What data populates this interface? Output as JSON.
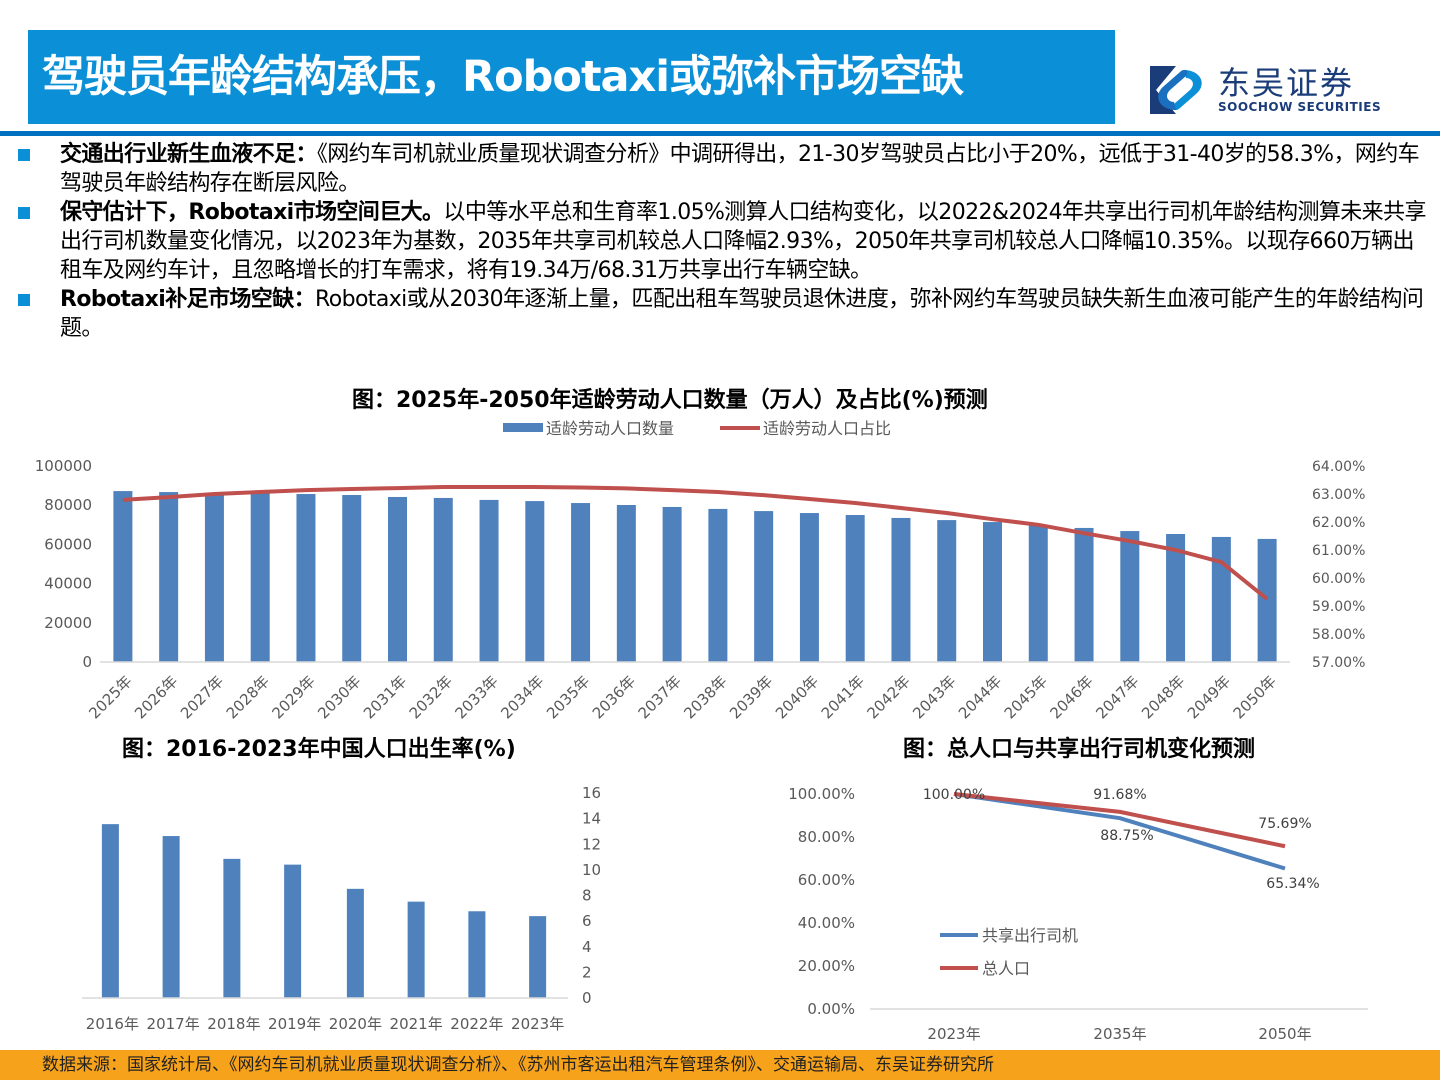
{
  "header": {
    "title": "驾驶员年龄结构承压，Robotaxi或弥补市场空缺",
    "logo_cn": "东吴证券",
    "logo_en": "SOOCHOW SECURITIES"
  },
  "colors": {
    "brand_blue": "#0b8fd6",
    "rule_blue": "#0070c0",
    "bar_blue": "#4f81bd",
    "line_red": "#c0504d",
    "footer_orange": "#f7a21b"
  },
  "bullets": [
    {
      "bold": "交通出行业新生血液不足：",
      "text": "《网约车司机就业质量现状调查分析》中调研得出，21-30岁驾驶员占比小于20%，远低于31-40岁的58.3%，网约车驾驶员年龄结构存在断层风险。"
    },
    {
      "bold": "保守估计下，Robotaxi市场空间巨大。",
      "text": "以中等水平总和生育率1.05%测算人口结构变化，以2022&2024年共享出行司机年龄结构测算未来共享出行司机数量变化情况，以2023年为基数，2035年共享司机较总人口降幅2.93%，2050年共享司机较总人口降幅10.35%。以现存660万辆出租车及网约车计，且忽略增长的打车需求，将有19.34万/68.31万共享出行车辆空缺。"
    },
    {
      "bold": "Robotaxi补足市场空缺：",
      "text": "Robotaxi或从2030年逐渐上量，匹配出租车驾驶员退休进度，弥补网约车驾驶员缺失新生血液可能产生的年龄结构问题。"
    }
  ],
  "chart_data": [
    {
      "type": "bar+line",
      "title": "图：2025年-2050年适龄劳动人口数量（万人）及占比(%)预测",
      "legend": [
        "适龄劳动人口数量",
        "适龄劳动人口占比"
      ],
      "legend_position": "top",
      "categories": [
        "2025年",
        "2026年",
        "2027年",
        "2028年",
        "2029年",
        "2030年",
        "2031年",
        "2032年",
        "2033年",
        "2034年",
        "2035年",
        "2036年",
        "2037年",
        "2038年",
        "2039年",
        "2040年",
        "2041年",
        "2042年",
        "2043年",
        "2044年",
        "2045年",
        "2046年",
        "2047年",
        "2048年",
        "2049年",
        "2050年"
      ],
      "series": [
        {
          "name": "适龄劳动人口数量",
          "type": "bar",
          "axis": "left",
          "values": [
            87200,
            86700,
            86200,
            86000,
            85700,
            85200,
            84200,
            83700,
            82700,
            82100,
            81100,
            80100,
            79100,
            78100,
            77000,
            76000,
            75000,
            73500,
            72400,
            71400,
            69900,
            68400,
            66800,
            65300,
            63800,
            62800
          ]
        },
        {
          "name": "适龄劳动人口占比",
          "type": "line",
          "axis": "right",
          "values": [
            62.79,
            62.89,
            63.0,
            63.07,
            63.14,
            63.18,
            63.21,
            63.25,
            63.25,
            63.25,
            63.23,
            63.2,
            63.14,
            63.07,
            62.96,
            62.82,
            62.68,
            62.5,
            62.32,
            62.1,
            61.9,
            61.6,
            61.32,
            61.0,
            60.57,
            59.25
          ]
        }
      ],
      "ylim_left": [
        0,
        100000
      ],
      "yticks_left": [
        "0",
        "20000",
        "40000",
        "60000",
        "80000",
        "100000"
      ],
      "ylim_right": [
        57,
        64
      ],
      "yticks_right": [
        "57.00%",
        "58.00%",
        "59.00%",
        "60.00%",
        "61.00%",
        "62.00%",
        "63.00%",
        "64.00%"
      ],
      "grid": false
    },
    {
      "type": "bar",
      "title": "图：2016-2023年中国人口出生率(%)",
      "categories": [
        "2016年",
        "2017年",
        "2018年",
        "2019年",
        "2020年",
        "2021年",
        "2022年",
        "2023年"
      ],
      "values": [
        13.57,
        12.64,
        10.86,
        10.41,
        8.52,
        7.52,
        6.77,
        6.39
      ],
      "ylim": [
        0,
        16
      ],
      "yticks": [
        "0",
        "2",
        "4",
        "6",
        "8",
        "10",
        "12",
        "14",
        "16"
      ],
      "yaxis_side": "right",
      "grid": false
    },
    {
      "type": "line",
      "title": "图：总人口与共享出行司机变化预测",
      "categories": [
        "2023年",
        "2035年",
        "2050年"
      ],
      "series": [
        {
          "name": "共享出行司机",
          "values": [
            100.0,
            88.75,
            65.34
          ],
          "labels": [
            "",
            "88.75%",
            "65.34%"
          ]
        },
        {
          "name": "总人口",
          "values": [
            100.0,
            91.68,
            75.69
          ],
          "labels": [
            "100.00%",
            "91.68%",
            "75.69%"
          ]
        }
      ],
      "ylim": [
        0,
        100
      ],
      "yticks": [
        "0.00%",
        "20.00%",
        "40.00%",
        "60.00%",
        "80.00%",
        "100.00%"
      ],
      "legend_position": "inside-left",
      "grid": false
    }
  ],
  "footer": {
    "source": "数据来源：国家统计局、《网约车司机就业质量现状调查分析》、《苏州市客运出租汽车管理条例》、交通运输局、东吴证券研究所"
  }
}
